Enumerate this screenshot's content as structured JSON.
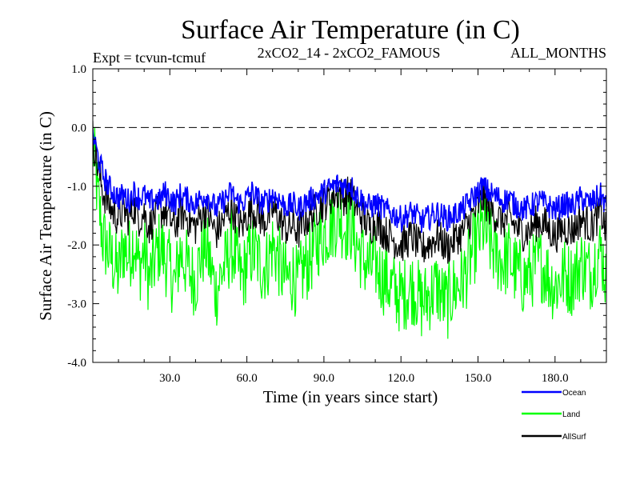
{
  "chart_data": {
    "type": "line",
    "title": "Surface Air Temperature (in C)",
    "subtitle_left": "Expt = tcvun-tcmuf",
    "subtitle_center": "2xCO2_14 - 2xCO2_FAMOUS",
    "subtitle_right": "ALL_MONTHS",
    "xlabel": "Time (in years since start)",
    "ylabel": "Surface Air Temperature (in C)",
    "xlim": [
      0,
      200
    ],
    "ylim": [
      -4.0,
      1.0
    ],
    "x_ticks": [
      30,
      60,
      90,
      120,
      150,
      180
    ],
    "x_tick_labels": [
      "30.0",
      "60.0",
      "90.0",
      "120.0",
      "150.0",
      "180.0"
    ],
    "y_ticks": [
      -4,
      -3,
      -2,
      -1,
      0,
      1
    ],
    "y_tick_labels": [
      "-4.0",
      "-3.0",
      "-2.0",
      "-1.0",
      "0.0",
      "1.0"
    ],
    "reference_line": {
      "y": 0.0,
      "style": "dashed"
    },
    "legend_position": "bottom-right",
    "x": [
      0,
      2,
      4,
      6,
      8,
      10,
      12,
      14,
      16,
      18,
      20,
      22,
      24,
      26,
      28,
      30,
      32,
      34,
      36,
      38,
      40,
      42,
      44,
      46,
      48,
      50,
      52,
      54,
      56,
      58,
      60,
      62,
      64,
      66,
      68,
      70,
      72,
      74,
      76,
      78,
      80,
      82,
      84,
      86,
      88,
      90,
      92,
      94,
      96,
      98,
      100,
      102,
      104,
      106,
      108,
      110,
      112,
      114,
      116,
      118,
      120,
      122,
      124,
      126,
      128,
      130,
      132,
      134,
      136,
      138,
      140,
      142,
      144,
      146,
      148,
      150,
      152,
      154,
      156,
      158,
      160,
      162,
      164,
      166,
      168,
      170,
      172,
      174,
      176,
      178,
      180,
      182,
      184,
      186,
      188,
      190,
      192,
      194,
      196,
      198,
      200
    ],
    "series": [
      {
        "name": "Ocean",
        "color": "#0000ff",
        "values": [
          -0.1,
          -0.5,
          -0.8,
          -1.0,
          -1.1,
          -1.2,
          -1.15,
          -1.25,
          -1.1,
          -1.2,
          -1.15,
          -1.3,
          -1.2,
          -1.25,
          -1.1,
          -1.2,
          -1.3,
          -1.15,
          -1.2,
          -1.25,
          -1.3,
          -1.2,
          -1.15,
          -1.25,
          -1.4,
          -1.3,
          -1.2,
          -1.1,
          -1.25,
          -1.3,
          -1.2,
          -1.1,
          -1.2,
          -1.3,
          -1.25,
          -1.15,
          -1.2,
          -1.3,
          -1.35,
          -1.3,
          -1.4,
          -1.3,
          -1.25,
          -1.2,
          -1.15,
          -1.1,
          -1.05,
          -1.0,
          -0.95,
          -1.0,
          -0.95,
          -1.1,
          -1.2,
          -1.3,
          -1.35,
          -1.3,
          -1.35,
          -1.4,
          -1.45,
          -1.5,
          -1.55,
          -1.5,
          -1.45,
          -1.5,
          -1.6,
          -1.55,
          -1.5,
          -1.45,
          -1.5,
          -1.55,
          -1.5,
          -1.45,
          -1.4,
          -1.3,
          -1.2,
          -1.1,
          -1.0,
          -1.1,
          -1.15,
          -1.2,
          -1.25,
          -1.2,
          -1.3,
          -1.35,
          -1.4,
          -1.35,
          -1.3,
          -1.25,
          -1.3,
          -1.35,
          -1.4,
          -1.35,
          -1.3,
          -1.35,
          -1.3,
          -1.2,
          -1.25,
          -1.3,
          -1.2,
          -1.15,
          -1.35
        ]
      },
      {
        "name": "Land",
        "color": "#00ff00",
        "values": [
          -0.3,
          -1.2,
          -1.9,
          -2.1,
          -2.3,
          -2.5,
          -2.0,
          -2.2,
          -1.9,
          -2.4,
          -2.1,
          -2.6,
          -2.3,
          -2.0,
          -2.2,
          -2.4,
          -2.7,
          -2.1,
          -2.3,
          -2.5,
          -2.6,
          -2.2,
          -2.0,
          -2.4,
          -2.8,
          -2.5,
          -2.3,
          -2.0,
          -2.3,
          -2.6,
          -2.3,
          -2.1,
          -2.2,
          -2.4,
          -2.3,
          -2.0,
          -2.2,
          -2.5,
          -2.6,
          -2.5,
          -2.7,
          -2.4,
          -2.3,
          -2.1,
          -1.9,
          -1.8,
          -1.7,
          -1.6,
          -1.5,
          -1.7,
          -1.6,
          -1.9,
          -2.1,
          -2.3,
          -2.4,
          -2.3,
          -2.5,
          -2.6,
          -2.7,
          -2.8,
          -2.9,
          -2.8,
          -2.7,
          -2.8,
          -3.0,
          -2.9,
          -2.8,
          -2.7,
          -2.9,
          -3.0,
          -2.8,
          -2.7,
          -2.6,
          -2.4,
          -2.1,
          -1.9,
          -1.7,
          -1.9,
          -2.1,
          -2.2,
          -2.3,
          -2.2,
          -2.4,
          -2.5,
          -2.6,
          -2.5,
          -2.4,
          -2.3,
          -2.4,
          -2.6,
          -2.7,
          -2.6,
          -2.5,
          -2.6,
          -2.5,
          -2.3,
          -2.4,
          -2.5,
          -2.2,
          -2.1,
          -2.6
        ]
      },
      {
        "name": "AllSurf",
        "color": "#000000",
        "values": [
          -0.15,
          -0.7,
          -1.1,
          -1.3,
          -1.45,
          -1.55,
          -1.4,
          -1.55,
          -1.35,
          -1.55,
          -1.45,
          -1.7,
          -1.5,
          -1.45,
          -1.4,
          -1.55,
          -1.7,
          -1.45,
          -1.5,
          -1.6,
          -1.7,
          -1.5,
          -1.4,
          -1.6,
          -1.8,
          -1.65,
          -1.5,
          -1.35,
          -1.55,
          -1.7,
          -1.5,
          -1.4,
          -1.45,
          -1.6,
          -1.55,
          -1.4,
          -1.5,
          -1.65,
          -1.75,
          -1.65,
          -1.8,
          -1.6,
          -1.55,
          -1.45,
          -1.35,
          -1.3,
          -1.2,
          -1.15,
          -1.1,
          -1.2,
          -1.1,
          -1.3,
          -1.45,
          -1.6,
          -1.7,
          -1.6,
          -1.7,
          -1.8,
          -1.85,
          -1.95,
          -2.0,
          -1.95,
          -1.85,
          -1.95,
          -2.1,
          -2.0,
          -1.95,
          -1.85,
          -1.95,
          -2.05,
          -1.95,
          -1.85,
          -1.8,
          -1.65,
          -1.5,
          -1.35,
          -1.2,
          -1.35,
          -1.45,
          -1.55,
          -1.6,
          -1.55,
          -1.65,
          -1.75,
          -1.8,
          -1.75,
          -1.65,
          -1.6,
          -1.65,
          -1.75,
          -1.85,
          -1.75,
          -1.7,
          -1.75,
          -1.7,
          -1.55,
          -1.6,
          -1.7,
          -1.55,
          -1.45,
          -1.8
        ]
      }
    ]
  }
}
